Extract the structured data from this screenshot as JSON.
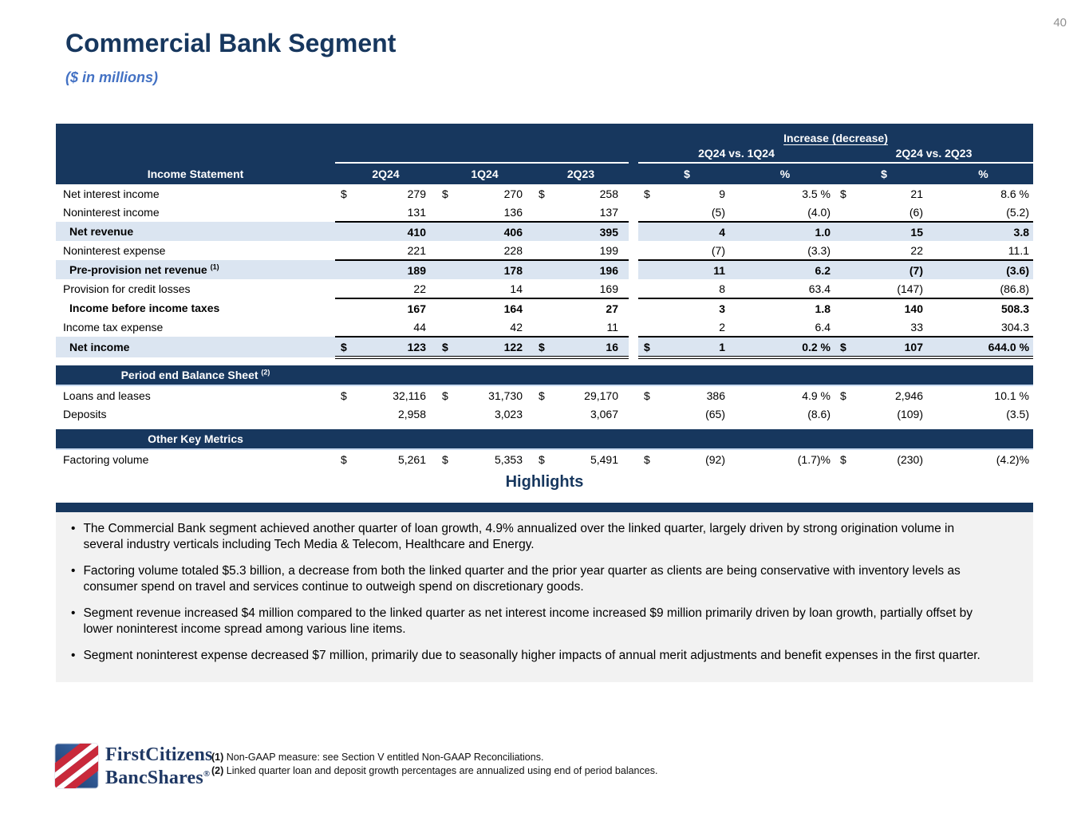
{
  "page": {
    "number": "40"
  },
  "header": {
    "title": "Commercial Bank Segment",
    "subtitle": "($ in millions)"
  },
  "table": {
    "group_header": "Increase (decrease)",
    "vs_labels": [
      "2Q24 vs. 1Q24",
      "2Q24 vs. 2Q23"
    ],
    "col_headers": {
      "label": "Income Statement",
      "periods": [
        "2Q24",
        "1Q24",
        "2Q23"
      ],
      "delta": [
        "$",
        "%",
        "$",
        "%"
      ]
    },
    "income_rows": [
      {
        "label": "Net interest income",
        "cells": [
          [
            "$",
            "279"
          ],
          [
            "$",
            "270"
          ],
          [
            "$",
            "258"
          ],
          [
            "$",
            "9"
          ],
          [
            "",
            "3.5 %"
          ],
          [
            "$",
            "21"
          ],
          [
            "",
            "8.6 %"
          ]
        ]
      },
      {
        "label": "Noninterest income",
        "cells": [
          [
            "",
            "131"
          ],
          [
            "",
            "136"
          ],
          [
            "",
            "137"
          ],
          [
            "",
            "(5)"
          ],
          [
            "",
            "(4.0)"
          ],
          [
            "",
            "(6)"
          ],
          [
            "",
            "(5.2)"
          ]
        ]
      },
      {
        "label": "Net revenue",
        "bold": true,
        "shaded": true,
        "line_top": true,
        "cells": [
          [
            "",
            "410"
          ],
          [
            "",
            "406"
          ],
          [
            "",
            "395"
          ],
          [
            "",
            "4"
          ],
          [
            "",
            "1.0"
          ],
          [
            "",
            "15"
          ],
          [
            "",
            "3.8"
          ]
        ]
      },
      {
        "label": "Noninterest expense",
        "cells": [
          [
            "",
            "221"
          ],
          [
            "",
            "228"
          ],
          [
            "",
            "199"
          ],
          [
            "",
            "(7)"
          ],
          [
            "",
            "(3.3)"
          ],
          [
            "",
            "22"
          ],
          [
            "",
            "11.1"
          ]
        ]
      },
      {
        "label": "Pre-provision net revenue",
        "sup": "(1)",
        "bold": true,
        "shaded": true,
        "line_top": true,
        "cells": [
          [
            "",
            "189"
          ],
          [
            "",
            "178"
          ],
          [
            "",
            "196"
          ],
          [
            "",
            "11"
          ],
          [
            "",
            "6.2"
          ],
          [
            "",
            "(7)"
          ],
          [
            "",
            "(3.6)"
          ]
        ]
      },
      {
        "label": "Provision for credit losses",
        "cells": [
          [
            "",
            "22"
          ],
          [
            "",
            "14"
          ],
          [
            "",
            "169"
          ],
          [
            "",
            "8"
          ],
          [
            "",
            "63.4"
          ],
          [
            "",
            "(147)"
          ],
          [
            "",
            "(86.8)"
          ]
        ]
      },
      {
        "label": "Income before income taxes",
        "bold": true,
        "line_top": true,
        "cells": [
          [
            "",
            "167"
          ],
          [
            "",
            "164"
          ],
          [
            "",
            "27"
          ],
          [
            "",
            "3"
          ],
          [
            "",
            "1.8"
          ],
          [
            "",
            "140"
          ],
          [
            "",
            "508.3"
          ]
        ]
      },
      {
        "label": "Income tax expense",
        "cells": [
          [
            "",
            "44"
          ],
          [
            "",
            "42"
          ],
          [
            "",
            "11"
          ],
          [
            "",
            "2"
          ],
          [
            "",
            "6.4"
          ],
          [
            "",
            "33"
          ],
          [
            "",
            "304.3"
          ]
        ]
      },
      {
        "label": "Net income",
        "bold": true,
        "shaded": true,
        "line_top": true,
        "double_bottom": true,
        "cells": [
          [
            "$",
            "123"
          ],
          [
            "$",
            "122"
          ],
          [
            "$",
            "16"
          ],
          [
            "$",
            "1"
          ],
          [
            "",
            "0.2 %"
          ],
          [
            "$",
            "107"
          ],
          [
            "",
            "644.0 %"
          ]
        ]
      }
    ],
    "balance_band": {
      "label": "Period end Balance Sheet",
      "sup": "(2)"
    },
    "balance_rows": [
      {
        "label": "Loans and leases",
        "cells": [
          [
            "$",
            "32,116"
          ],
          [
            "$",
            "31,730"
          ],
          [
            "$",
            "29,170"
          ],
          [
            "$",
            "386"
          ],
          [
            "",
            "4.9 %"
          ],
          [
            "$",
            "2,946"
          ],
          [
            "",
            "10.1 %"
          ]
        ]
      },
      {
        "label": "Deposits",
        "cells": [
          [
            "",
            "2,958"
          ],
          [
            "",
            "3,023"
          ],
          [
            "",
            "3,067"
          ],
          [
            "",
            "(65)"
          ],
          [
            "",
            "(8.6)"
          ],
          [
            "",
            "(109)"
          ],
          [
            "",
            "(3.5)"
          ]
        ]
      }
    ],
    "metrics_band": {
      "label": "Other Key Metrics"
    },
    "metrics_rows": [
      {
        "label": "Factoring volume",
        "cells": [
          [
            "$",
            "5,261"
          ],
          [
            "$",
            "5,353"
          ],
          [
            "$",
            "5,491"
          ],
          [
            "$",
            "(92)"
          ],
          [
            "",
            "(1.7)%"
          ],
          [
            "$",
            "(230)"
          ],
          [
            "",
            "(4.2)%"
          ]
        ]
      }
    ]
  },
  "highlights": {
    "title": "Highlights",
    "bullets": [
      "The Commercial Bank segment achieved another quarter of loan growth, 4.9% annualized over the linked quarter, largely driven by strong origination volume in several industry verticals including Tech Media & Telecom, Healthcare and Energy.",
      "Factoring volume totaled $5.3 billion, a decrease from both the linked quarter and the prior year quarter as clients are being conservative with inventory levels as consumer spend on travel and services continue to outweigh spend on discretionary goods.",
      "Segment revenue increased $4 million compared to the linked quarter as net interest income increased $9 million primarily driven by loan growth, partially offset by lower noninterest income spread among various line items.",
      "Segment noninterest expense decreased $7 million, primarily due to seasonally higher impacts of annual merit adjustments and benefit expenses in the first quarter."
    ]
  },
  "footnotes": [
    {
      "num": "(1)",
      "text": "Non-GAAP measure: see Section V entitled Non-GAAP Reconciliations."
    },
    {
      "num": "(2)",
      "text": "Linked quarter loan and deposit growth percentages are annualized using end of period balances."
    }
  ],
  "logo": {
    "line1": "FirstCitizens",
    "line2": "BancShares",
    "reg": "®"
  },
  "colors": {
    "navy": "#17375e",
    "accent_blue": "#4472c4",
    "row_shade": "#dbe5f1",
    "box_gray": "#f2f2f2",
    "logo_red": "#c9293a",
    "logo_navy": "#1f3864",
    "page_num_gray": "#909090"
  }
}
